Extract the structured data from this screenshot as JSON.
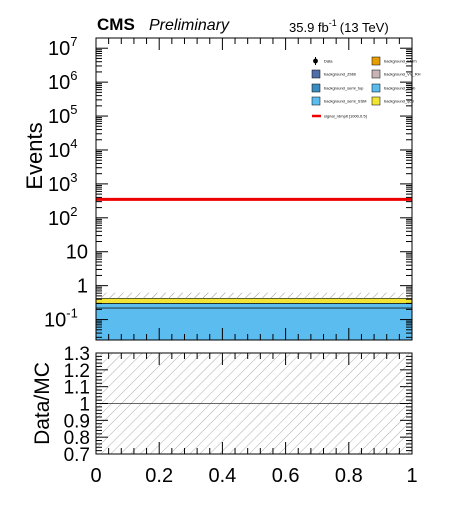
{
  "header": {
    "experiment": "CMS",
    "status": "Preliminary",
    "lumi": "35.9 fb",
    "lumi_exp": "-1",
    "energy": "(13 TeV)"
  },
  "chart_data": [
    {
      "type": "bar",
      "panel": "main",
      "ylabel": "Events",
      "yscale": "log",
      "ylim": [
        0.025,
        20000000
      ],
      "xlim": [
        0,
        1
      ],
      "y_tick_labels": [
        "10^-1",
        "1",
        "10",
        "10^2",
        "10^3",
        "10^4",
        "10^5",
        "10^6",
        "10^7"
      ],
      "stack": [
        {
          "name": "background_hbb",
          "color": "#5bbcf0",
          "range": [
            0,
            0.22
          ]
        },
        {
          "name": "background_ssm",
          "color": "#5bbcf0",
          "range": [
            0.22,
            0.3
          ]
        },
        {
          "name": "background_qcd",
          "color": "#f2e432",
          "range": [
            0.3,
            0.42
          ]
        },
        {
          "name": "background_stat_unc",
          "color": "#888888",
          "range": [
            0.42,
            0.62
          ],
          "style": "hatched"
        }
      ],
      "signal": {
        "name": "signal_rdmpit [1000,0.5]",
        "value": 350,
        "color": "#ee0000"
      },
      "legend": {
        "placement": "top-right",
        "entries": [
          {
            "label": "Data",
            "color": "#000000",
            "marker": "point"
          },
          {
            "label": "background_SMrh",
            "color": "#e69d00"
          },
          {
            "label": "background_Zbbb",
            "color": "#4f6fa8"
          },
          {
            "label": "background_VV_RH",
            "color": "#c8b4b4"
          },
          {
            "label": "background_semi_top",
            "color": "#3a8cc0"
          },
          {
            "label": "background_Wbb",
            "color": "#5bbcf0"
          },
          {
            "label": "background_semi_SSM",
            "color": "#5bbcf0"
          },
          {
            "label": "background_qcd",
            "color": "#f2e432"
          },
          {
            "label": "signal_rdmpit [1000,0.5]",
            "color": "#ee0000",
            "marker": "line"
          }
        ]
      }
    },
    {
      "type": "line",
      "panel": "ratio",
      "ylabel": "Data/MC",
      "xlim": [
        0,
        1
      ],
      "ylim": [
        0.7,
        1.3
      ],
      "y_ticks": [
        "0.7",
        "0.8",
        "0.9",
        "1",
        "1.1",
        "1.2",
        "1.3"
      ],
      "x_ticks": [
        "0",
        "0.2",
        "0.4",
        "0.6",
        "0.8",
        "1"
      ],
      "reference_line": 1,
      "uncertainty_band": [
        0.7,
        1.3
      ]
    }
  ]
}
